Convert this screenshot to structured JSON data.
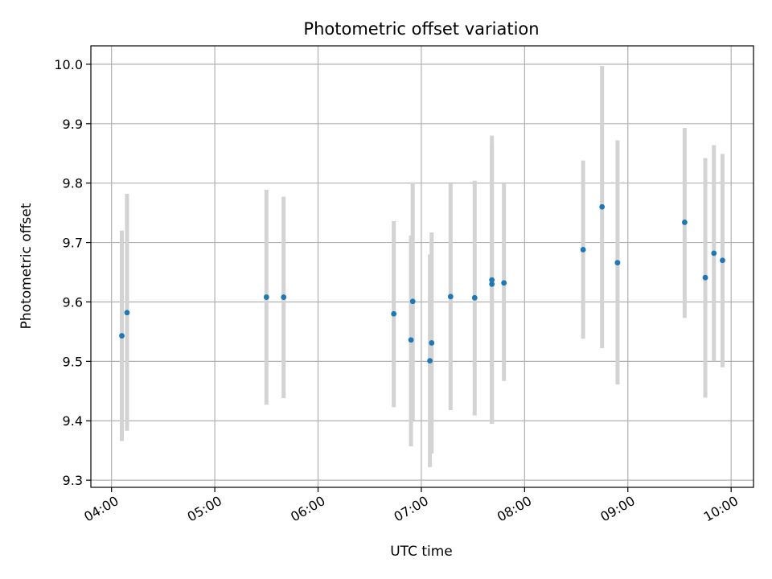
{
  "chart_data": {
    "type": "scatter",
    "title": "Photometric offset variation",
    "xlabel": "UTC time",
    "ylabel": "Photometric offset",
    "xlim": [
      "03:48",
      "10:13"
    ],
    "ylim": [
      9.288,
      10.031
    ],
    "x_ticks": [
      "04:00",
      "05:00",
      "06:00",
      "07:00",
      "08:00",
      "09:00",
      "10:00"
    ],
    "y_ticks": [
      "9.3",
      "9.4",
      "9.5",
      "9.6",
      "9.7",
      "9.8",
      "9.9",
      "10.0"
    ],
    "grid": true,
    "colors": {
      "point": "#1f77b4",
      "errorbar": "#d3d3d3",
      "grid": "#b0b0b0"
    },
    "points": [
      {
        "t": "04:06",
        "y": 9.543,
        "lo": 9.366,
        "hi": 9.72
      },
      {
        "t": "04:09",
        "y": 9.582,
        "lo": 9.383,
        "hi": 9.782
      },
      {
        "t": "05:30",
        "y": 9.608,
        "lo": 9.427,
        "hi": 9.789
      },
      {
        "t": "05:40",
        "y": 9.608,
        "lo": 9.438,
        "hi": 9.777
      },
      {
        "t": "06:44",
        "y": 9.58,
        "lo": 9.423,
        "hi": 9.736
      },
      {
        "t": "06:54",
        "y": 9.536,
        "lo": 9.357,
        "hi": 9.712
      },
      {
        "t": "06:55",
        "y": 9.601,
        "lo": 9.401,
        "hi": 9.801
      },
      {
        "t": "07:05",
        "y": 9.501,
        "lo": 9.322,
        "hi": 9.68
      },
      {
        "t": "07:06",
        "y": 9.531,
        "lo": 9.345,
        "hi": 9.717
      },
      {
        "t": "07:17",
        "y": 9.609,
        "lo": 9.418,
        "hi": 9.799
      },
      {
        "t": "07:31",
        "y": 9.607,
        "lo": 9.409,
        "hi": 9.804
      },
      {
        "t": "07:41",
        "y": 9.63,
        "lo": 9.396,
        "hi": 9.864
      },
      {
        "t": "07:41",
        "y": 9.637,
        "lo": 9.395,
        "hi": 9.88
      },
      {
        "t": "07:48",
        "y": 9.632,
        "lo": 9.467,
        "hi": 9.8
      },
      {
        "t": "08:34",
        "y": 9.688,
        "lo": 9.538,
        "hi": 9.838
      },
      {
        "t": "08:45",
        "y": 9.76,
        "lo": 9.522,
        "hi": 9.997
      },
      {
        "t": "08:54",
        "y": 9.666,
        "lo": 9.461,
        "hi": 9.872
      },
      {
        "t": "09:33",
        "y": 9.734,
        "lo": 9.573,
        "hi": 9.893
      },
      {
        "t": "09:45",
        "y": 9.641,
        "lo": 9.439,
        "hi": 9.842
      },
      {
        "t": "09:50",
        "y": 9.682,
        "lo": 9.5,
        "hi": 9.864
      },
      {
        "t": "09:55",
        "y": 9.67,
        "lo": 9.49,
        "hi": 9.849
      }
    ]
  }
}
